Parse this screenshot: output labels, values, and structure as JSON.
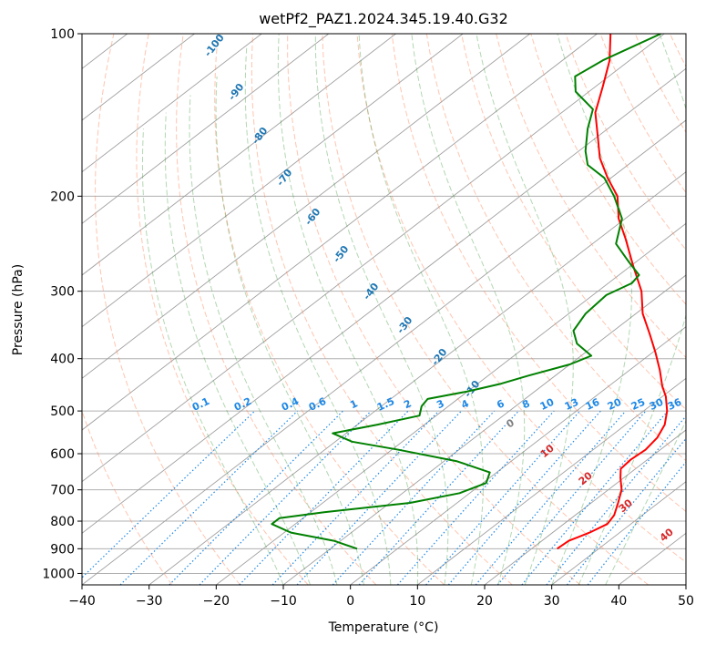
{
  "chart_data": {
    "type": "line",
    "subtype": "skew-T log-P diagram",
    "title": "wetPf2_PAZ1.2024.345.19.40.G32",
    "xlabel": "Temperature (°C)",
    "ylabel": "Pressure (hPa)",
    "xlim": [
      -40,
      50
    ],
    "ylim": [
      1050,
      100
    ],
    "yscale": "log",
    "x_ticks": [
      "−40",
      "−30",
      "−20",
      "−10",
      "0",
      "10",
      "20",
      "30",
      "40",
      "50"
    ],
    "y_ticks": [
      {
        "p": 100,
        "label": "100"
      },
      {
        "p": 200,
        "label": "200"
      },
      {
        "p": 300,
        "label": "300"
      },
      {
        "p": 400,
        "label": "400"
      },
      {
        "p": 500,
        "label": "500"
      },
      {
        "p": 600,
        "label": "600"
      },
      {
        "p": 700,
        "label": "700"
      },
      {
        "p": 800,
        "label": "800"
      },
      {
        "p": 900,
        "label": "900"
      },
      {
        "p": 1000,
        "label": "1000"
      }
    ],
    "grid": true,
    "colors": {
      "temperature": "#ff0000",
      "dewpoint": "#008000",
      "isotherm": "#808080",
      "dry_adiabat": "#ff7f50",
      "moist_adiabat": "#228b22",
      "mixing_ratio": "#1e88e5",
      "dry_adiabat_label": "#d62728",
      "moist_adiabat_label": "#1f77b4",
      "isotherm_label": "#808080"
    },
    "series": [
      {
        "key": "temperature",
        "points": [
          {
            "p": 900,
            "t": 23.8
          },
          {
            "p": 870,
            "t": 24.0
          },
          {
            "p": 840,
            "t": 25.5
          },
          {
            "p": 810,
            "t": 26.5
          },
          {
            "p": 780,
            "t": 25.8
          },
          {
            "p": 740,
            "t": 24.0
          },
          {
            "p": 700,
            "t": 22.0
          },
          {
            "p": 665,
            "t": 19.5
          },
          {
            "p": 640,
            "t": 17.8
          },
          {
            "p": 615,
            "t": 17.5
          },
          {
            "p": 590,
            "t": 17.8
          },
          {
            "p": 560,
            "t": 17.2
          },
          {
            "p": 530,
            "t": 15.8
          },
          {
            "p": 500,
            "t": 13.5
          },
          {
            "p": 470,
            "t": 10.5
          },
          {
            "p": 450,
            "t": 8.0
          },
          {
            "p": 420,
            "t": 4.5
          },
          {
            "p": 390,
            "t": 0.5
          },
          {
            "p": 360,
            "t": -4.0
          },
          {
            "p": 330,
            "t": -9.0
          },
          {
            "p": 300,
            "t": -13.5
          },
          {
            "p": 270,
            "t": -19.5
          },
          {
            "p": 240,
            "t": -26.0
          },
          {
            "p": 220,
            "t": -31.0
          },
          {
            "p": 200,
            "t": -35.5
          },
          {
            "p": 185,
            "t": -40.5
          },
          {
            "p": 170,
            "t": -45.5
          },
          {
            "p": 155,
            "t": -50.0
          },
          {
            "p": 140,
            "t": -55.0
          },
          {
            "p": 125,
            "t": -59.0
          },
          {
            "p": 112,
            "t": -63.0
          },
          {
            "p": 100,
            "t": -68.0
          }
        ]
      },
      {
        "key": "dewpoint",
        "points": [
          {
            "p": 900,
            "t": -6.0
          },
          {
            "p": 870,
            "t": -11.0
          },
          {
            "p": 840,
            "t": -19.0
          },
          {
            "p": 810,
            "t": -23.5
          },
          {
            "p": 790,
            "t": -23.5
          },
          {
            "p": 770,
            "t": -18.0
          },
          {
            "p": 740,
            "t": -7.0
          },
          {
            "p": 710,
            "t": -1.5
          },
          {
            "p": 680,
            "t": 0.5
          },
          {
            "p": 650,
            "t": -1.0
          },
          {
            "p": 620,
            "t": -8.0
          },
          {
            "p": 590,
            "t": -19.0
          },
          {
            "p": 570,
            "t": -27.5
          },
          {
            "p": 550,
            "t": -32.0
          },
          {
            "p": 530,
            "t": -27.0
          },
          {
            "p": 510,
            "t": -22.5
          },
          {
            "p": 490,
            "t": -24.0
          },
          {
            "p": 475,
            "t": -24.5
          },
          {
            "p": 460,
            "t": -20.0
          },
          {
            "p": 445,
            "t": -16.5
          },
          {
            "p": 430,
            "t": -14.0
          },
          {
            "p": 410,
            "t": -10.0
          },
          {
            "p": 395,
            "t": -8.5
          },
          {
            "p": 375,
            "t": -13.0
          },
          {
            "p": 355,
            "t": -16.0
          },
          {
            "p": 330,
            "t": -17.5
          },
          {
            "p": 305,
            "t": -18.0
          },
          {
            "p": 290,
            "t": -16.5
          },
          {
            "p": 280,
            "t": -17.0
          },
          {
            "p": 265,
            "t": -21.0
          },
          {
            "p": 245,
            "t": -26.5
          },
          {
            "p": 220,
            "t": -30.5
          },
          {
            "p": 200,
            "t": -36.0
          },
          {
            "p": 185,
            "t": -41.0
          },
          {
            "p": 175,
            "t": -46.0
          },
          {
            "p": 165,
            "t": -49.0
          },
          {
            "p": 150,
            "t": -53.0
          },
          {
            "p": 138,
            "t": -56.0
          },
          {
            "p": 128,
            "t": -62.0
          },
          {
            "p": 120,
            "t": -65.0
          },
          {
            "p": 112,
            "t": -64.0
          },
          {
            "p": 100,
            "t": -60.5
          }
        ]
      }
    ],
    "dry_adiabat_labels": [
      "10",
      "20",
      "30",
      "40"
    ],
    "moist_adiabat_labels": [
      "-100",
      "-90",
      "-80",
      "-70",
      "-60",
      "-50",
      "-40",
      "-30",
      "-20",
      "-10"
    ],
    "isotherm_label": "0",
    "mixing_ratio_labels": [
      "0.1",
      "0.2",
      "0.4",
      "0.6",
      "1",
      "1.5",
      "2",
      "3",
      "4",
      "6",
      "8",
      "10",
      "13",
      "16",
      "20",
      "25",
      "30",
      "36"
    ]
  }
}
